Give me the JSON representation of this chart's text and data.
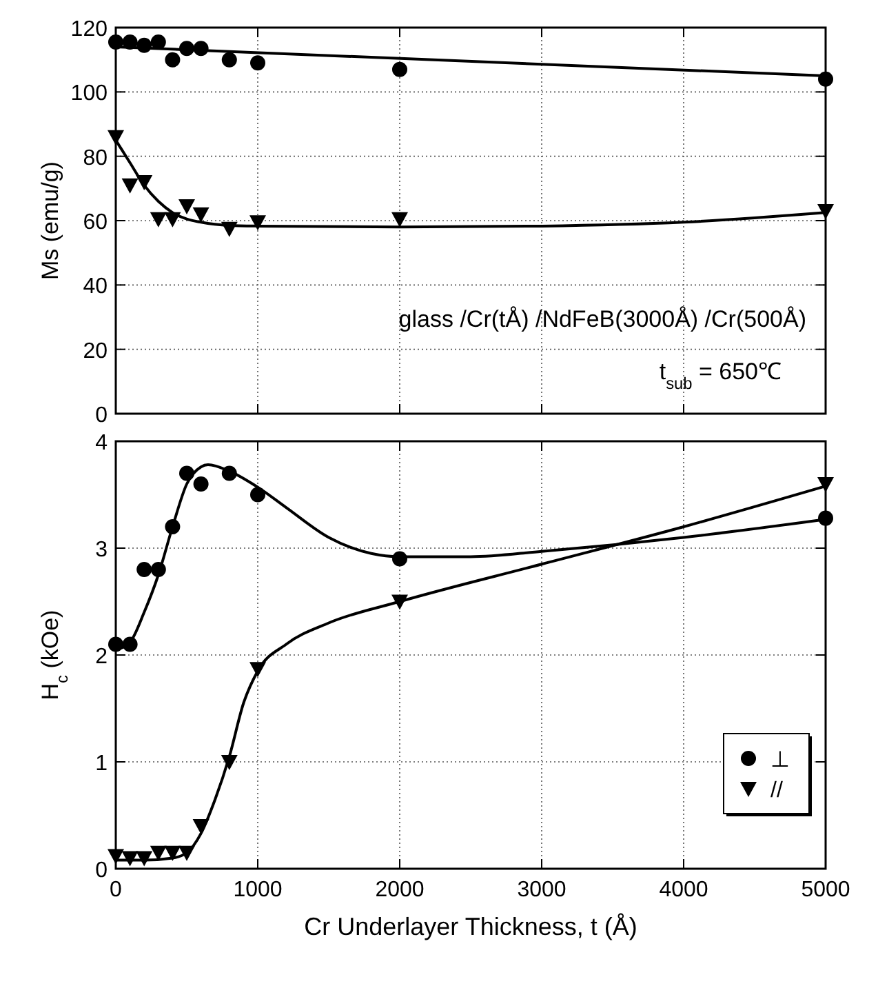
{
  "chart_data": [
    {
      "type": "scatter",
      "ylabel": "Ms (emu/g)",
      "xlim": [
        0,
        5000
      ],
      "xticks": [
        0,
        1000,
        2000,
        3000,
        4000,
        5000
      ],
      "ylim": [
        0,
        120
      ],
      "yticks": [
        0,
        20,
        40,
        60,
        80,
        100,
        120
      ],
      "tick_labels": "y",
      "grid": true,
      "legend": false,
      "annotations": [
        "glass /Cr(tÅ) /NdFeB(3000Å) /Cr(500Å)",
        "t$_{sub}$ = 650℃"
      ],
      "series": [
        {
          "marker": "circle",
          "color": "#000000",
          "x": [
            0,
            100,
            200,
            300,
            400,
            500,
            600,
            800,
            1000,
            2000,
            5000
          ],
          "values": [
            115.5,
            115.5,
            114.5,
            115.5,
            110,
            113.5,
            113.5,
            110,
            109,
            107,
            104
          ]
        },
        {
          "marker": "triangle",
          "color": "#000000",
          "x": [
            0,
            100,
            200,
            300,
            400,
            500,
            600,
            800,
            1000,
            2000,
            5000
          ],
          "values": [
            86,
            71,
            72,
            60.5,
            60.5,
            64.5,
            62,
            57.5,
            59.5,
            60.5,
            63
          ]
        },
        {
          "type": "line",
          "color": "#000000",
          "x": [
            0,
            5000
          ],
          "values": [
            114,
            105
          ]
        },
        {
          "type": "line",
          "color": "#000000",
          "x": [
            0,
            100,
            200,
            300,
            400,
            500,
            600,
            800,
            1000,
            2000,
            3000,
            4000,
            5000
          ],
          "values": [
            85,
            78,
            71,
            66,
            62.5,
            60.5,
            59.5,
            58.5,
            58.3,
            58,
            58.3,
            59.5,
            62.5
          ]
        }
      ]
    },
    {
      "type": "scatter",
      "xlabel": "Cr Underlayer Thickness, t (Å)",
      "ylabel": "H$_{c}$ (kOe)",
      "xlim": [
        0,
        5000
      ],
      "xticks": [
        0,
        1000,
        2000,
        3000,
        4000,
        5000
      ],
      "ylim": [
        0,
        4
      ],
      "yticks": [
        0,
        1,
        2,
        3,
        4
      ],
      "grid": true,
      "legend": "bottom right",
      "series": [
        {
          "name": "⊥",
          "marker": "circle",
          "color": "#000000",
          "x": [
            0,
            100,
            200,
            300,
            400,
            500,
            600,
            800,
            1000,
            2000,
            5000
          ],
          "values": [
            2.1,
            2.1,
            2.8,
            2.8,
            3.2,
            3.7,
            3.6,
            3.7,
            3.5,
            2.9,
            3.28
          ]
        },
        {
          "name": "//",
          "marker": "triangle",
          "color": "#000000",
          "x": [
            0,
            100,
            200,
            300,
            400,
            500,
            600,
            800,
            1000,
            2000,
            5000
          ],
          "values": [
            0.12,
            0.1,
            0.1,
            0.15,
            0.15,
            0.15,
            0.4,
            1.0,
            1.87,
            2.5,
            3.6
          ]
        },
        {
          "type": "line",
          "color": "#000000",
          "x": [
            0,
            100,
            200,
            300,
            400,
            500,
            600,
            650,
            800,
            1000,
            1200,
            1500,
            1800,
            2000,
            2500,
            3000,
            4000,
            5000
          ],
          "values": [
            2.05,
            2.12,
            2.4,
            2.75,
            3.2,
            3.6,
            3.76,
            3.78,
            3.72,
            3.57,
            3.38,
            3.1,
            2.95,
            2.92,
            2.92,
            2.97,
            3.1,
            3.27
          ]
        },
        {
          "type": "line",
          "color": "#000000",
          "x": [
            0,
            200,
            400,
            500,
            600,
            700,
            800,
            900,
            1000,
            1200,
            1500,
            2000,
            3000,
            4000,
            5000
          ],
          "values": [
            0.08,
            0.08,
            0.1,
            0.15,
            0.33,
            0.65,
            1.05,
            1.55,
            1.85,
            2.1,
            2.3,
            2.5,
            2.85,
            3.2,
            3.58
          ]
        }
      ]
    }
  ]
}
